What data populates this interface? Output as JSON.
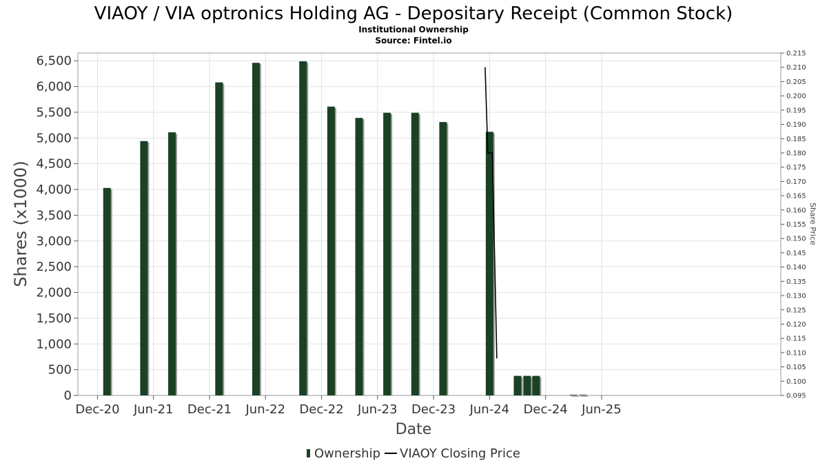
{
  "chart_data": {
    "type": "bar",
    "title": "VIAOY / VIA optronics Holding AG - Depositary Receipt (Common Stock)",
    "subtitle": "Institutional Ownership",
    "source": "Source: Fintel.io",
    "xlabel": "Date",
    "ylabel": "Shares (x1000)",
    "y2label": "Share Price",
    "ylim": [
      0,
      6650
    ],
    "y2lim": [
      0.095,
      0.215
    ],
    "xlim": [
      -0.35,
      12.2
    ],
    "x_ticks": [
      "Dec-20",
      "Jun-21",
      "Dec-21",
      "Jun-22",
      "Dec-22",
      "Jun-23",
      "Dec-23",
      "Jun-24",
      "Dec-24",
      "Jun-25"
    ],
    "y_ticks": [
      "0",
      "500",
      "1,000",
      "1,500",
      "2,000",
      "2,500",
      "3,000",
      "3,500",
      "4,000",
      "4,500",
      "5,000",
      "5,500",
      "6,000",
      "6,500"
    ],
    "y2_ticks": [
      "0.095",
      "0.100",
      "0.105",
      "0.110",
      "0.115",
      "0.120",
      "0.125",
      "0.130",
      "0.135",
      "0.140",
      "0.145",
      "0.150",
      "0.155",
      "0.160",
      "0.165",
      "0.170",
      "0.175",
      "0.180",
      "0.185",
      "0.190",
      "0.195",
      "0.200",
      "0.205",
      "0.210",
      "0.215"
    ],
    "grid": true,
    "series": [
      {
        "name": "Ownership",
        "type": "bar",
        "color": "#1b4125",
        "x": [
          0.17,
          0.83,
          1.33,
          2.17,
          2.83,
          3.67,
          4.17,
          4.67,
          5.17,
          5.67,
          6.17,
          7.0,
          7.5,
          7.67,
          7.83,
          8.5,
          8.67
        ],
        "values": [
          4030,
          4940,
          5110,
          6080,
          6460,
          6490,
          5610,
          5390,
          5490,
          5490,
          5310,
          5120,
          380,
          380,
          380,
          5,
          5
        ]
      },
      {
        "name": "VIAOY Closing Price",
        "type": "line",
        "color": "#000000",
        "x": [
          6.92,
          6.97,
          7.0,
          7.05,
          7.13
        ],
        "values": [
          0.21,
          0.18,
          0.18,
          0.18,
          0.108
        ]
      }
    ]
  }
}
